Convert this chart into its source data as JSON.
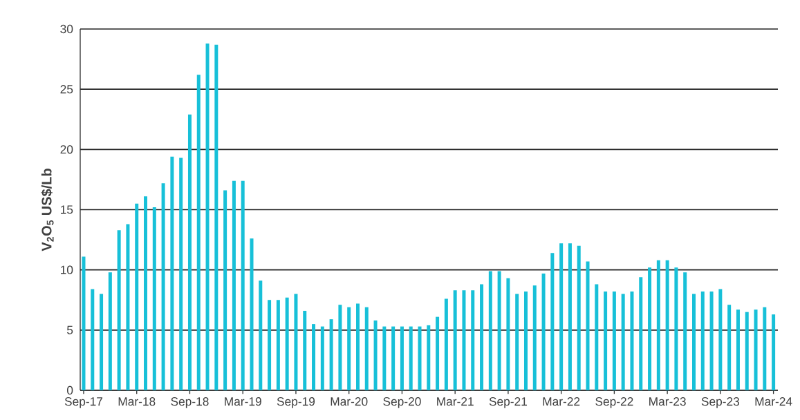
{
  "chart_data": {
    "type": "bar",
    "ylabel": "V$_{2}$O$_{5}$ US$/Lb",
    "categories": [
      "Sep-17",
      null,
      null,
      null,
      null,
      null,
      "Mar-18",
      null,
      null,
      null,
      null,
      null,
      "Sep-18",
      null,
      null,
      null,
      null,
      null,
      "Mar-19",
      null,
      null,
      null,
      null,
      null,
      "Sep-19",
      null,
      null,
      null,
      null,
      null,
      "Mar-20",
      null,
      null,
      null,
      null,
      null,
      "Sep-20",
      null,
      null,
      null,
      null,
      null,
      "Mar-21",
      null,
      null,
      null,
      null,
      null,
      "Sep-21",
      null,
      null,
      null,
      null,
      null,
      "Mar-22",
      null,
      null,
      null,
      null,
      null,
      "Sep-22",
      null,
      null,
      null,
      null,
      null,
      "Mar-23",
      null,
      null,
      null,
      null,
      null,
      "Sep-23",
      null,
      null,
      null,
      null,
      null,
      "Mar-24"
    ],
    "values": [
      11.1,
      8.4,
      8.0,
      9.8,
      13.3,
      13.8,
      15.5,
      16.1,
      15.2,
      17.2,
      19.4,
      19.3,
      22.9,
      26.2,
      28.8,
      28.7,
      16.6,
      17.4,
      17.4,
      12.6,
      9.1,
      7.5,
      7.5,
      7.7,
      8.0,
      6.6,
      5.5,
      5.3,
      5.9,
      7.1,
      6.9,
      7.2,
      6.9,
      5.8,
      5.3,
      5.3,
      5.3,
      5.3,
      5.3,
      5.4,
      6.1,
      7.6,
      8.3,
      8.3,
      8.3,
      8.8,
      9.9,
      9.9,
      9.3,
      8.0,
      8.2,
      8.7,
      9.7,
      11.4,
      12.2,
      12.2,
      12.0,
      10.7,
      8.8,
      8.2,
      8.2,
      8.0,
      8.2,
      9.4,
      10.2,
      10.8,
      10.8,
      10.2,
      9.8,
      8.0,
      8.2,
      8.2,
      8.4,
      7.1,
      6.7,
      6.5,
      6.7,
      6.9,
      6.3
    ],
    "color": "#17c0d8",
    "ylim": [
      0,
      30
    ],
    "yticks": [
      0,
      5,
      10,
      15,
      20,
      25,
      30
    ],
    "grid": "y"
  }
}
